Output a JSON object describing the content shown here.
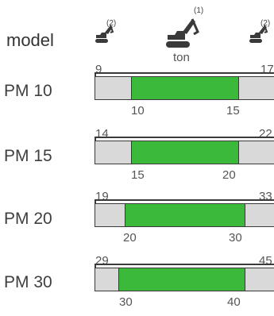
{
  "header": {
    "model_label": "model",
    "unit_label": "ton",
    "icons": [
      {
        "name": "excavator-small-icon",
        "note": "(2)"
      },
      {
        "name": "excavator-large-icon",
        "note": "(1)"
      },
      {
        "name": "excavator-small-icon",
        "note": "(2)"
      }
    ]
  },
  "colors": {
    "recommended": "#3ab93a",
    "range": "#d9d9d9",
    "stroke": "#3a3a3a"
  },
  "rows": [
    {
      "model": "PM 10",
      "min": "9",
      "max": "17",
      "rec_min": "10",
      "rec_max": "15"
    },
    {
      "model": "PM 15",
      "min": "14",
      "max": "22",
      "rec_min": "15",
      "rec_max": "20"
    },
    {
      "model": "PM 20",
      "min": "19",
      "max": "33",
      "rec_min": "20",
      "rec_max": "30"
    },
    {
      "model": "PM 30",
      "min": "29",
      "max": "45",
      "rec_min": "30",
      "rec_max": "40"
    }
  ]
}
